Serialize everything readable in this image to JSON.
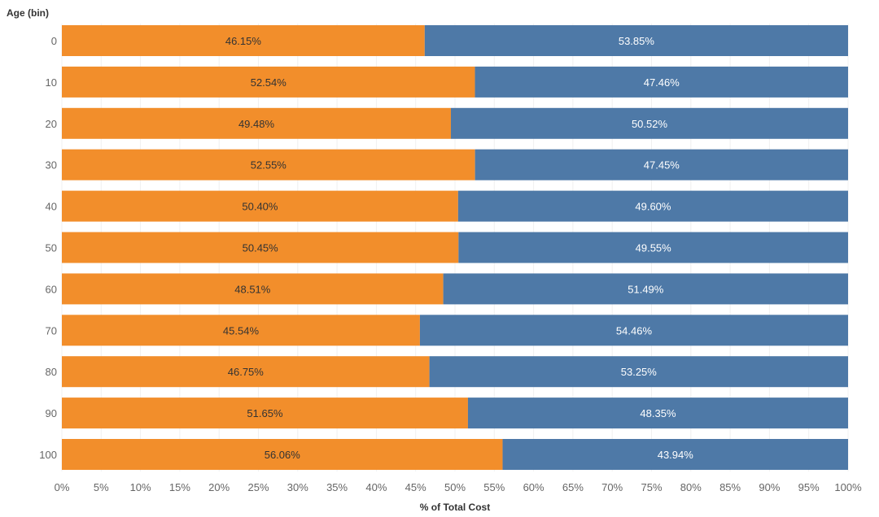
{
  "chart_data": {
    "type": "bar",
    "orientation": "horizontal",
    "stacked": true,
    "ylabel": "Age (bin)",
    "xlabel": "% of Total Cost",
    "categories": [
      "0",
      "10",
      "20",
      "30",
      "40",
      "50",
      "60",
      "70",
      "80",
      "90",
      "100"
    ],
    "series": [
      {
        "color": "#f28e2b",
        "values": [
          46.15,
          52.54,
          49.48,
          52.55,
          50.4,
          50.45,
          48.51,
          45.54,
          46.75,
          51.65,
          56.06
        ],
        "labels": [
          "46.15%",
          "52.54%",
          "49.48%",
          "52.55%",
          "50.40%",
          "50.45%",
          "48.51%",
          "45.54%",
          "46.75%",
          "51.65%",
          "56.06%"
        ]
      },
      {
        "color": "#4e79a7",
        "values": [
          53.85,
          47.46,
          50.52,
          47.45,
          49.6,
          49.55,
          51.49,
          54.46,
          53.25,
          48.35,
          43.94
        ],
        "labels": [
          "53.85%",
          "47.46%",
          "50.52%",
          "47.45%",
          "49.60%",
          "49.55%",
          "51.49%",
          "54.46%",
          "53.25%",
          "48.35%",
          "43.94%"
        ]
      }
    ],
    "xlim": [
      0,
      100
    ],
    "xticks": [
      0,
      5,
      10,
      15,
      20,
      25,
      30,
      35,
      40,
      45,
      50,
      55,
      60,
      65,
      70,
      75,
      80,
      85,
      90,
      95,
      100
    ],
    "xtick_labels": [
      "0%",
      "5%",
      "10%",
      "15%",
      "20%",
      "25%",
      "30%",
      "35%",
      "40%",
      "45%",
      "50%",
      "55%",
      "60%",
      "65%",
      "70%",
      "75%",
      "80%",
      "85%",
      "90%",
      "95%",
      "100%"
    ],
    "grid": true,
    "legend": "none"
  }
}
